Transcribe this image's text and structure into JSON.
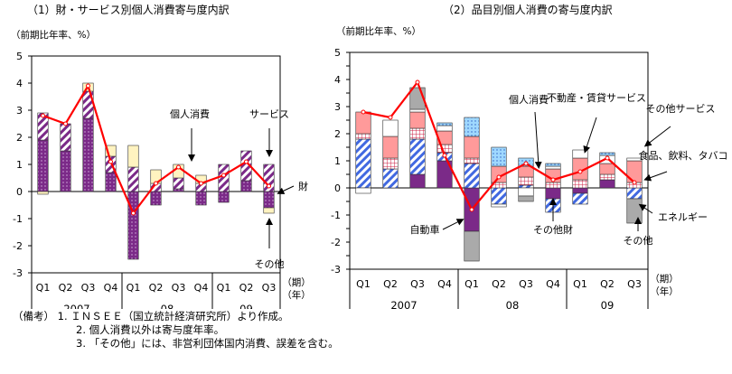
{
  "titles": {
    "left": "（1）財・サービス別個人消費寄与度内訳",
    "right": "（2）品目別個人消費の寄与度内訳"
  },
  "colors": {
    "goods": "#7b2a88",
    "services": "#7b2a88",
    "other": "#fff3c0",
    "consumption_line": "#ff0000",
    "autos": "#7b2a88",
    "other_goods": "#4169e1",
    "real_estate": "#cc2244",
    "other_services": "#ff9a9a",
    "food": "#ffffff",
    "energy": "#aaaaaa",
    "other_right": "#87cefa"
  },
  "notes": [
    "（備考） 1. ＩＮＳＥＥ（国立統計経済研究所）より作成。",
    "2. 個人消費以外は寄与度年率。",
    "3. 「その他」には、非営利団体国内消費、誤差を含む。"
  ],
  "chart_data": [
    {
      "type": "bar",
      "stacked": true,
      "title": "（1）財・サービス別個人消費寄与度内訳",
      "ylabel": "（前期比年率、%）",
      "xunit": "（期）（年）",
      "ylim": [
        -3,
        5
      ],
      "yticks": [
        5,
        4,
        3,
        2,
        1,
        0,
        -1,
        -2,
        -3
      ],
      "categories": [
        "Q1",
        "Q2",
        "Q3",
        "Q4",
        "Q1",
        "Q2",
        "Q3",
        "Q4",
        "Q1",
        "Q2",
        "Q3"
      ],
      "year_labels": [
        {
          "label": "2007",
          "start": 0,
          "end": 3
        },
        {
          "label": "08",
          "start": 4,
          "end": 7
        },
        {
          "label": "09",
          "start": 8,
          "end": 10
        }
      ],
      "series": [
        {
          "name": "財",
          "key": "goods",
          "pattern": "dots",
          "values": [
            1.9,
            1.5,
            2.7,
            0.7,
            -2.5,
            -0.5,
            0.1,
            -0.5,
            -0.4,
            0.4,
            -0.6
          ]
        },
        {
          "name": "サービス",
          "key": "services",
          "pattern": "stripes",
          "values": [
            1.0,
            1.0,
            1.0,
            0.6,
            0.9,
            0.3,
            0.4,
            0.3,
            1.0,
            1.1,
            1.0
          ]
        },
        {
          "name": "その他",
          "key": "other",
          "pattern": "plain",
          "values": [
            -0.1,
            0.0,
            0.3,
            0.4,
            0.8,
            0.5,
            0.5,
            0.3,
            0.0,
            0.0,
            -0.2
          ]
        }
      ],
      "line": {
        "name": "個人消費",
        "values": [
          2.8,
          2.5,
          3.9,
          1.1,
          -0.8,
          0.3,
          0.9,
          0.3,
          0.6,
          1.1,
          0.2
        ]
      },
      "annotations": [
        "個人消費",
        "サービス",
        "財",
        "その他"
      ]
    },
    {
      "type": "bar",
      "stacked": true,
      "title": "（2）品目別個人消費の寄与度内訳",
      "ylabel": "（前期比年率、%）",
      "xunit": "（期）（年）",
      "ylim": [
        -3,
        5
      ],
      "yticks": [
        5,
        4.5,
        4,
        3.5,
        3,
        2.5,
        2,
        1.5,
        1,
        0.5,
        0,
        -0.5,
        -1,
        -1.5,
        -2,
        -2.5,
        -3
      ],
      "categories": [
        "Q1",
        "Q2",
        "Q3",
        "Q4",
        "Q1",
        "Q2",
        "Q3",
        "Q4",
        "Q1",
        "Q2",
        "Q3"
      ],
      "year_labels": [
        {
          "label": "2007",
          "start": 0,
          "end": 3
        },
        {
          "label": "08",
          "start": 4,
          "end": 7
        },
        {
          "label": "09",
          "start": 8,
          "end": 10
        }
      ],
      "series": [
        {
          "name": "自動車",
          "key": "autos",
          "pattern": "stripes",
          "values": [
            0.0,
            0.0,
            0.5,
            1.0,
            -1.6,
            0.0,
            0.0,
            -0.4,
            -0.2,
            0.3,
            0.0
          ]
        },
        {
          "name": "その他財",
          "key": "other_goods",
          "pattern": "stripes",
          "values": [
            1.8,
            0.7,
            1.3,
            0.3,
            0.9,
            -0.6,
            0.1,
            -0.5,
            -0.4,
            0.0,
            -0.4
          ]
        },
        {
          "name": "不動産・賃貸サービス",
          "key": "real_estate",
          "pattern": "grid",
          "values": [
            0.2,
            0.4,
            0.4,
            0.3,
            0.2,
            0.2,
            0.3,
            0.2,
            0.3,
            0.2,
            0.2
          ]
        },
        {
          "name": "その他サービス",
          "key": "other_services",
          "pattern": "plain",
          "values": [
            0.8,
            0.8,
            0.6,
            0.5,
            0.8,
            0.6,
            0.4,
            0.5,
            0.8,
            0.4,
            0.8
          ]
        },
        {
          "name": "食品、飲料、タバコ",
          "key": "food",
          "pattern": "plain",
          "values": [
            -0.2,
            0.6,
            0.1,
            0.2,
            0.0,
            -0.1,
            -0.3,
            0.1,
            0.3,
            0.3,
            0.1
          ]
        },
        {
          "name": "エネルギー",
          "key": "energy",
          "pattern": "plain",
          "values": [
            0.0,
            0.0,
            0.8,
            0.0,
            -1.1,
            0.0,
            -0.2,
            0.0,
            0.0,
            0.0,
            -0.9
          ]
        },
        {
          "name": "その他",
          "key": "other_right",
          "pattern": "dots",
          "values": [
            0.0,
            0.0,
            0.0,
            0.1,
            0.7,
            0.7,
            0.3,
            0.1,
            0.0,
            0.1,
            0.0
          ]
        }
      ],
      "line": {
        "name": "個人消費",
        "values": [
          2.8,
          2.6,
          3.9,
          1.2,
          -0.8,
          0.4,
          0.9,
          0.3,
          0.6,
          1.1,
          0.2
        ]
      },
      "annotations": [
        "個人消費",
        "不動産・賃貸サービス",
        "その他サービス",
        "食品、飲料、タバコ",
        "エネルギー",
        "自動車",
        "その他財",
        "その他"
      ]
    }
  ]
}
